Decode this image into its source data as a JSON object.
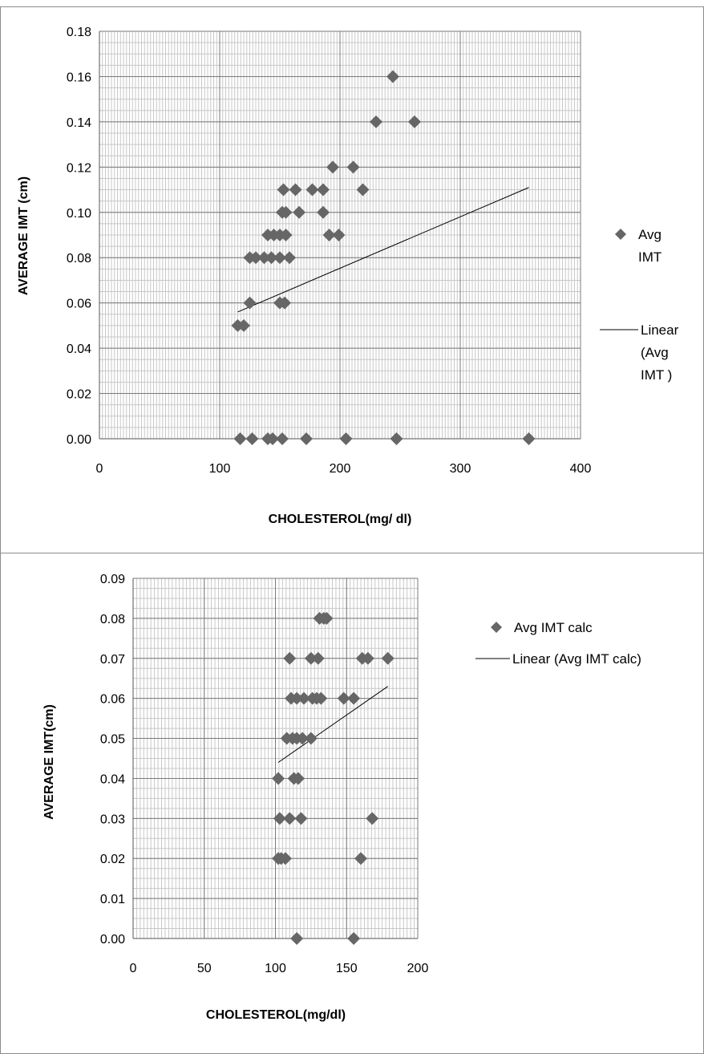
{
  "chart_data": [
    {
      "type": "scatter",
      "title": "",
      "xlabel": "CHOLESTEROL(mg/ dl)",
      "ylabel": "AVERAGE  IMT (cm)",
      "xlim": [
        0,
        400
      ],
      "ylim": [
        0,
        0.18
      ],
      "x_ticks": [
        0,
        100,
        200,
        300,
        400
      ],
      "y_ticks": [
        0,
        0.02,
        0.04,
        0.06,
        0.08,
        0.1,
        0.12,
        0.14,
        0.16,
        0.18
      ],
      "x_tick_labels": [
        "0",
        "100",
        "200",
        "300",
        "400"
      ],
      "y_tick_labels": [
        "0.00",
        "0.02",
        "0.04",
        "0.06",
        "0.08",
        "0.10",
        "0.12",
        "0.14",
        "0.16",
        "0.18"
      ],
      "grid": true,
      "legend_position": "right",
      "marker_color": "#666666",
      "series": [
        {
          "name": "Avg IMT",
          "legend_lines": [
            "Avg",
            "IMT"
          ],
          "points": [
            [
              115,
              0.05
            ],
            [
              120,
              0.05
            ],
            [
              125,
              0.06
            ],
            [
              125,
              0.08
            ],
            [
              130,
              0.08
            ],
            [
              137,
              0.08
            ],
            [
              143,
              0.08
            ],
            [
              140,
              0.09
            ],
            [
              145,
              0.09
            ],
            [
              150,
              0.09
            ],
            [
              155,
              0.09
            ],
            [
              150,
              0.08
            ],
            [
              158,
              0.08
            ],
            [
              150,
              0.06
            ],
            [
              154,
              0.06
            ],
            [
              152,
              0.1
            ],
            [
              155,
              0.1
            ],
            [
              153,
              0.11
            ],
            [
              163,
              0.11
            ],
            [
              166,
              0.1
            ],
            [
              177,
              0.11
            ],
            [
              186,
              0.11
            ],
            [
              186,
              0.1
            ],
            [
              191,
              0.09
            ],
            [
              199,
              0.09
            ],
            [
              194,
              0.12
            ],
            [
              211,
              0.12
            ],
            [
              219,
              0.11
            ],
            [
              230,
              0.14
            ],
            [
              244,
              0.16
            ],
            [
              262,
              0.14
            ],
            [
              117,
              0.0
            ],
            [
              127,
              0.0
            ],
            [
              140,
              0.0
            ],
            [
              144,
              0.0
            ],
            [
              152,
              0.0
            ],
            [
              172,
              0.0
            ],
            [
              205,
              0.0
            ],
            [
              247,
              0.0
            ],
            [
              357,
              0.0
            ]
          ]
        }
      ],
      "trendline": {
        "name": "Linear (Avg IMT )",
        "legend_lines": [
          "Linear",
          "(Avg",
          "IMT )"
        ],
        "from": [
          115,
          0.056
        ],
        "to": [
          357,
          0.111
        ]
      }
    },
    {
      "type": "scatter",
      "title": "",
      "xlabel": "CHOLESTEROL(mg/dl)",
      "ylabel": "AVERAGE IMT(cm)",
      "xlim": [
        0,
        200
      ],
      "ylim": [
        0,
        0.09
      ],
      "x_ticks": [
        0,
        50,
        100,
        150,
        200
      ],
      "y_ticks": [
        0,
        0.01,
        0.02,
        0.03,
        0.04,
        0.05,
        0.06,
        0.07,
        0.08,
        0.09
      ],
      "x_tick_labels": [
        "0",
        "50",
        "100",
        "150",
        "200"
      ],
      "y_tick_labels": [
        "0.00",
        "0.01",
        "0.02",
        "0.03",
        "0.04",
        "0.05",
        "0.06",
        "0.07",
        "0.08",
        "0.09"
      ],
      "grid": true,
      "legend_position": "right",
      "marker_color": "#666666",
      "series": [
        {
          "name": "Avg IMT calc",
          "legend_lines": [
            "Avg IMT calc"
          ],
          "points": [
            [
              102,
              0.02
            ],
            [
              104,
              0.02
            ],
            [
              107,
              0.02
            ],
            [
              103,
              0.03
            ],
            [
              110,
              0.03
            ],
            [
              118,
              0.03
            ],
            [
              168,
              0.03
            ],
            [
              160,
              0.02
            ],
            [
              102,
              0.04
            ],
            [
              113,
              0.04
            ],
            [
              116,
              0.04
            ],
            [
              108,
              0.05
            ],
            [
              112,
              0.05
            ],
            [
              115,
              0.05
            ],
            [
              119,
              0.05
            ],
            [
              125,
              0.05
            ],
            [
              111,
              0.06
            ],
            [
              115,
              0.06
            ],
            [
              120,
              0.06
            ],
            [
              126,
              0.06
            ],
            [
              129,
              0.06
            ],
            [
              132,
              0.06
            ],
            [
              148,
              0.06
            ],
            [
              155,
              0.06
            ],
            [
              110,
              0.07
            ],
            [
              125,
              0.07
            ],
            [
              130,
              0.07
            ],
            [
              161,
              0.07
            ],
            [
              165,
              0.07
            ],
            [
              179,
              0.07
            ],
            [
              131,
              0.08
            ],
            [
              134,
              0.08
            ],
            [
              136,
              0.08
            ],
            [
              115,
              0.0
            ],
            [
              155,
              0.0
            ]
          ]
        }
      ],
      "trendline": {
        "name": "Linear (Avg IMT calc)",
        "legend_lines": [
          "Linear (Avg IMT calc)"
        ],
        "from": [
          102,
          0.044
        ],
        "to": [
          179,
          0.063
        ]
      }
    }
  ]
}
